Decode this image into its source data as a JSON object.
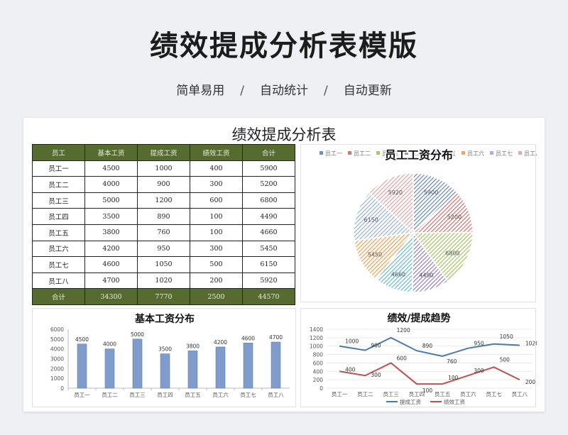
{
  "header": {
    "title": "绩效提成分析表模版",
    "features": [
      "简单易用",
      "自动统计",
      "自动更新"
    ],
    "separator": "/"
  },
  "sheet": {
    "title": "绩效提成分析表",
    "columns": [
      "员工",
      "基本工资",
      "提成工资",
      "绩效工资",
      "合计"
    ],
    "rows": [
      [
        "员工一",
        "4500",
        "1000",
        "400",
        "5900"
      ],
      [
        "员工二",
        "4000",
        "900",
        "300",
        "5200"
      ],
      [
        "员工三",
        "5000",
        "1200",
        "600",
        "6800"
      ],
      [
        "员工四",
        "3500",
        "890",
        "100",
        "4490"
      ],
      [
        "员工五",
        "3800",
        "760",
        "100",
        "4660"
      ],
      [
        "员工六",
        "4200",
        "950",
        "300",
        "5450"
      ],
      [
        "员工七",
        "4600",
        "1050",
        "500",
        "6150"
      ],
      [
        "员工八",
        "4700",
        "1020",
        "200",
        "5920"
      ]
    ],
    "total": [
      "合计",
      "34300",
      "7770",
      "2500",
      "44570"
    ]
  },
  "chart_data": [
    {
      "type": "pie",
      "title": "员工工资分布",
      "categories": [
        "员工一",
        "员工二",
        "员工三",
        "员工四",
        "员工五",
        "员工六",
        "员工七",
        "员工八"
      ],
      "values": [
        5900,
        5200,
        6800,
        4490,
        4660,
        5450,
        6150,
        5920
      ],
      "colors": [
        "#6f8fc4",
        "#d07b78",
        "#a8c66c",
        "#9b86c0",
        "#6fc0d2",
        "#f0a55e",
        "#9eb6de",
        "#e7a8a6"
      ],
      "legend": "top"
    },
    {
      "type": "bar",
      "title": "基本工资分布",
      "categories": [
        "员工一",
        "员工二",
        "员工三",
        "员工四",
        "员工五",
        "员工六",
        "员工七",
        "员工八"
      ],
      "values": [
        4500,
        4000,
        5000,
        3500,
        3800,
        4200,
        4600,
        4700
      ],
      "ylim": [
        0,
        6000
      ],
      "yticks": [
        0,
        1000,
        2000,
        3000,
        4000,
        5000,
        6000
      ],
      "color": "#7f9ccb"
    },
    {
      "type": "line",
      "title": "绩效/提成趋势",
      "categories": [
        "员工一",
        "员工二",
        "员工三",
        "员工四",
        "员工五",
        "员工六",
        "员工七",
        "员工八"
      ],
      "series": [
        {
          "name": "提成工资",
          "values": [
            1000,
            900,
            1200,
            890,
            760,
            950,
            1050,
            1020
          ],
          "color": "#4a78b0"
        },
        {
          "name": "绩效工资",
          "values": [
            400,
            300,
            600,
            100,
            100,
            300,
            500,
            200
          ],
          "color": "#c0504d"
        }
      ],
      "ylim": [
        0,
        1400
      ],
      "yticks": [
        0,
        200,
        400,
        600,
        800,
        1000,
        1200,
        1400
      ],
      "legend": "bottom"
    }
  ]
}
